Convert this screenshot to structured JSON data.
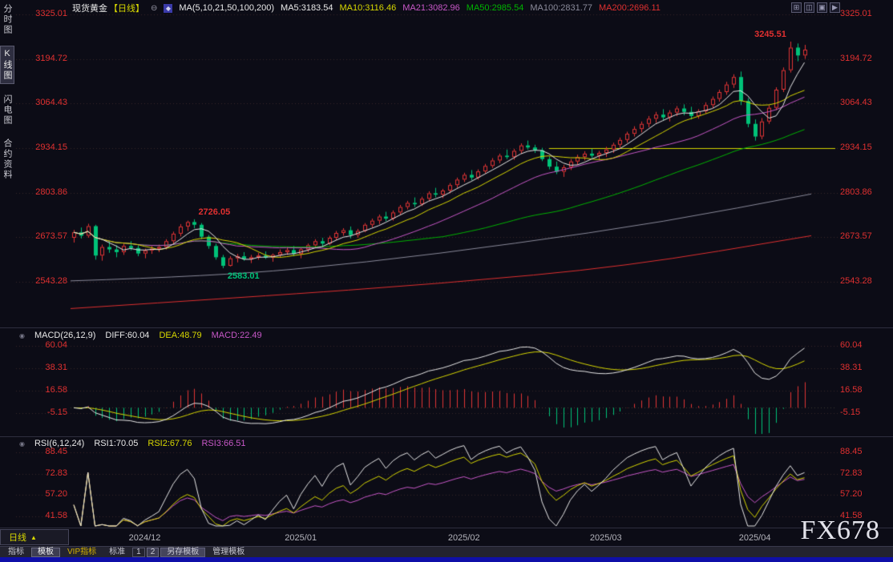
{
  "app": {
    "top_bar": {
      "title": "现货黄金",
      "period_tag": "【日线】",
      "window_icons": [
        "⊞",
        "◫",
        "▣",
        "▶"
      ]
    },
    "sidebar": {
      "items": [
        {
          "label": "分时图",
          "active": false
        },
        {
          "label": "K线图",
          "active": true
        },
        {
          "label": "闪电图",
          "active": false
        },
        {
          "label": "合约资料",
          "active": false
        }
      ]
    },
    "bottom": {
      "period_button": {
        "label": "日线",
        "arrow": "▲"
      },
      "watermark": "FX678",
      "toolbar": [
        {
          "label": "指标",
          "style": "flat"
        },
        {
          "label": "模板",
          "style": "active"
        },
        {
          "label": "VIP指标",
          "style": "vip"
        },
        {
          "label": "标准",
          "style": "flat"
        },
        {
          "label": "1",
          "style": "box"
        },
        {
          "label": "2",
          "style": "box-active"
        },
        {
          "label": "另存模板",
          "style": "raised"
        },
        {
          "label": "管理模板",
          "style": "flat"
        }
      ]
    }
  },
  "chart_data": {
    "type": "candlestick",
    "title": "现货黄金 日线",
    "colors": {
      "up": "#e23535",
      "down": "#00c278",
      "axis_text": "#e03030",
      "grid": "#38282a",
      "background": "#0c0c16"
    },
    "ma_legend": {
      "group": "MA(5,10,21,50,100,200)",
      "items": [
        {
          "text": "MA5:3183.54",
          "color": "#e8e8e8"
        },
        {
          "text": "MA10:3116.46",
          "color": "#d8d800"
        },
        {
          "text": "MA21:3082.96",
          "color": "#c858c8"
        },
        {
          "text": "MA50:2985.54",
          "color": "#00b400"
        },
        {
          "text": "MA100:2831.77",
          "color": "#8a8a9a"
        },
        {
          "text": "MA200:2696.11",
          "color": "#e03030"
        }
      ]
    },
    "price_panel": {
      "y_axis_labels": [
        "3325.01",
        "3194.72",
        "3064.43",
        "2934.15",
        "2803.86",
        "2673.57",
        "2543.28"
      ],
      "annotations": [
        {
          "text": "2726.05",
          "candle": 17,
          "price": 2726.05,
          "color": "#e03030",
          "placement": "right-of-high"
        },
        {
          "text": "2583.01",
          "candle": 21,
          "price": 2583.01,
          "color": "#00c278",
          "placement": "below-low"
        },
        {
          "text": "3245.51",
          "candle": 101,
          "price": 3245.51,
          "color": "#e03030",
          "placement": "left-of-high"
        }
      ],
      "hline": {
        "price": 2934.15,
        "from_candle": 67,
        "color": "#d4d400"
      },
      "ma_windows": [
        {
          "n": 5,
          "color": "#e8e8e8"
        },
        {
          "n": 10,
          "color": "#d8d800"
        },
        {
          "n": 21,
          "color": "#c858c8"
        },
        {
          "n": 50,
          "color": "#00b400"
        }
      ],
      "ma_overlays": [
        {
          "name": "MA100",
          "color": "#8a8a9a",
          "points": [
            [
              0,
              2546
            ],
            [
              0.2,
              2560
            ],
            [
              0.4,
              2600
            ],
            [
              0.6,
              2655
            ],
            [
              0.8,
              2718
            ],
            [
              1,
              2800
            ]
          ]
        },
        {
          "name": "MA200",
          "color": "#e03030",
          "points": [
            [
              0,
              2465
            ],
            [
              0.25,
              2500
            ],
            [
              0.5,
              2538
            ],
            [
              0.75,
              2588
            ],
            [
              1,
              2678
            ]
          ]
        }
      ],
      "candle_format": "[open,high,low,close]",
      "candles": [
        [
          2672,
          2695,
          2658,
          2688
        ],
        [
          2688,
          2702,
          2670,
          2678
        ],
        [
          2678,
          2713,
          2672,
          2706
        ],
        [
          2706,
          2710,
          2608,
          2620
        ],
        [
          2620,
          2652,
          2605,
          2645
        ],
        [
          2645,
          2660,
          2628,
          2638
        ],
        [
          2638,
          2650,
          2615,
          2630
        ],
        [
          2630,
          2655,
          2622,
          2648
        ],
        [
          2648,
          2662,
          2635,
          2642
        ],
        [
          2642,
          2650,
          2618,
          2626
        ],
        [
          2626,
          2640,
          2612,
          2635
        ],
        [
          2635,
          2648,
          2625,
          2640
        ],
        [
          2640,
          2652,
          2630,
          2645
        ],
        [
          2645,
          2668,
          2638,
          2662
        ],
        [
          2662,
          2690,
          2655,
          2684
        ],
        [
          2684,
          2712,
          2676,
          2705
        ],
        [
          2705,
          2722,
          2692,
          2718
        ],
        [
          2718,
          2726.05,
          2700,
          2710
        ],
        [
          2710,
          2715,
          2668,
          2675
        ],
        [
          2675,
          2680,
          2640,
          2648
        ],
        [
          2648,
          2655,
          2608,
          2615
        ],
        [
          2615,
          2622,
          2583.01,
          2590
        ],
        [
          2590,
          2618,
          2588,
          2612
        ],
        [
          2612,
          2625,
          2600,
          2618
        ],
        [
          2618,
          2630,
          2605,
          2610
        ],
        [
          2610,
          2622,
          2598,
          2615
        ],
        [
          2615,
          2628,
          2608,
          2620
        ],
        [
          2620,
          2632,
          2610,
          2614
        ],
        [
          2614,
          2626,
          2602,
          2622
        ],
        [
          2622,
          2638,
          2615,
          2630
        ],
        [
          2630,
          2645,
          2622,
          2636
        ],
        [
          2636,
          2648,
          2618,
          2625
        ],
        [
          2625,
          2642,
          2612,
          2638
        ],
        [
          2638,
          2655,
          2630,
          2650
        ],
        [
          2650,
          2668,
          2642,
          2662
        ],
        [
          2662,
          2672,
          2645,
          2655
        ],
        [
          2655,
          2678,
          2650,
          2672
        ],
        [
          2672,
          2692,
          2665,
          2686
        ],
        [
          2686,
          2700,
          2678,
          2694
        ],
        [
          2694,
          2705,
          2670,
          2680
        ],
        [
          2680,
          2698,
          2672,
          2692
        ],
        [
          2692,
          2715,
          2688,
          2710
        ],
        [
          2710,
          2728,
          2702,
          2722
        ],
        [
          2722,
          2740,
          2712,
          2734
        ],
        [
          2734,
          2748,
          2720,
          2728
        ],
        [
          2728,
          2752,
          2722,
          2746
        ],
        [
          2746,
          2768,
          2740,
          2762
        ],
        [
          2762,
          2780,
          2755,
          2774
        ],
        [
          2774,
          2790,
          2762,
          2770
        ],
        [
          2770,
          2792,
          2765,
          2786
        ],
        [
          2786,
          2808,
          2780,
          2802
        ],
        [
          2802,
          2818,
          2790,
          2798
        ],
        [
          2798,
          2815,
          2788,
          2810
        ],
        [
          2810,
          2832,
          2802,
          2826
        ],
        [
          2826,
          2848,
          2818,
          2842
        ],
        [
          2842,
          2862,
          2835,
          2856
        ],
        [
          2856,
          2870,
          2840,
          2848
        ],
        [
          2848,
          2872,
          2842,
          2866
        ],
        [
          2866,
          2888,
          2860,
          2882
        ],
        [
          2882,
          2905,
          2876,
          2898
        ],
        [
          2898,
          2918,
          2890,
          2912
        ],
        [
          2912,
          2930,
          2902,
          2908
        ],
        [
          2908,
          2932,
          2900,
          2926
        ],
        [
          2926,
          2948,
          2918,
          2942
        ],
        [
          2942,
          2956.19,
          2930,
          2936
        ],
        [
          2936,
          2944,
          2920,
          2928
        ],
        [
          2928,
          2935,
          2896,
          2902
        ],
        [
          2902,
          2910,
          2872,
          2880
        ],
        [
          2880,
          2895,
          2858,
          2865
        ],
        [
          2865,
          2885,
          2850,
          2878
        ],
        [
          2878,
          2902,
          2870,
          2895
        ],
        [
          2895,
          2915,
          2885,
          2908
        ],
        [
          2908,
          2925,
          2898,
          2918
        ],
        [
          2918,
          2932,
          2905,
          2912
        ],
        [
          2912,
          2926,
          2900,
          2920
        ],
        [
          2920,
          2938,
          2908,
          2930
        ],
        [
          2930,
          2950,
          2920,
          2944
        ],
        [
          2944,
          2965,
          2935,
          2958
        ],
        [
          2958,
          2982,
          2950,
          2976
        ],
        [
          2976,
          2998,
          2968,
          2990
        ],
        [
          2990,
          3012,
          2980,
          3005
        ],
        [
          3005,
          3028,
          2995,
          3020
        ],
        [
          3020,
          3040,
          3008,
          3032
        ],
        [
          3032,
          3048,
          3015,
          3024
        ],
        [
          3024,
          3045,
          3012,
          3038
        ],
        [
          3038,
          3057,
          3028,
          3050
        ],
        [
          3050,
          3062,
          3030,
          3040
        ],
        [
          3040,
          3055,
          3018,
          3028
        ],
        [
          3028,
          3048,
          3020,
          3042
        ],
        [
          3042,
          3068,
          3035,
          3060
        ],
        [
          3060,
          3085,
          3052,
          3078
        ],
        [
          3078,
          3105,
          3070,
          3098
        ],
        [
          3098,
          3128,
          3090,
          3120
        ],
        [
          3120,
          3150,
          3110,
          3142
        ],
        [
          3142,
          3158,
          3060,
          3072
        ],
        [
          3072,
          3080,
          2995,
          3005
        ],
        [
          3005,
          3018,
          2956,
          2968
        ],
        [
          2968,
          3022,
          2960,
          3012
        ],
        [
          3012,
          3060,
          3005,
          3052
        ],
        [
          3052,
          3112,
          3045,
          3105
        ],
        [
          3105,
          3170,
          3098,
          3162
        ],
        [
          3162,
          3245.51,
          3155,
          3228
        ],
        [
          3228,
          3240,
          3188,
          3205
        ],
        [
          3205,
          3236,
          3195,
          3222
        ]
      ]
    },
    "macd_panel": {
      "legend": [
        {
          "text": "MACD(26,12,9)",
          "color": "#e8e8e8"
        },
        {
          "text": "DIFF:60.04",
          "color": "#e8e8e8"
        },
        {
          "text": "DEA:48.79",
          "color": "#d8d800"
        },
        {
          "text": "MACD:22.49",
          "color": "#c858c8"
        }
      ],
      "params": {
        "fast": 12,
        "slow": 26,
        "signal": 9
      },
      "current": {
        "diff": 60.04,
        "dea": 48.79,
        "macd": 22.49
      },
      "y_axis_labels": [
        "60.04",
        "38.31",
        "16.58",
        "-5.15"
      ]
    },
    "rsi_panel": {
      "legend": [
        {
          "text": "RSI(6,12,24)",
          "color": "#e8e8e8"
        },
        {
          "text": "RSI1:70.05",
          "color": "#e8e8e8"
        },
        {
          "text": "RSI2:67.76",
          "color": "#d8d800"
        },
        {
          "text": "RSI3:66.51",
          "color": "#c858c8"
        }
      ],
      "params": [
        6,
        12,
        24
      ],
      "current": {
        "rsi1": 70.05,
        "rsi2": 67.76,
        "rsi3": 66.51
      },
      "y_axis_labels": [
        "88.45",
        "72.83",
        "57.20",
        "41.58"
      ]
    },
    "x_axis": {
      "ticks": [
        {
          "label": "2024/12",
          "index": 10
        },
        {
          "label": "2025/01",
          "index": 32
        },
        {
          "label": "2025/02",
          "index": 55
        },
        {
          "label": "2025/03",
          "index": 75
        },
        {
          "label": "2025/04",
          "index": 96
        }
      ]
    }
  }
}
